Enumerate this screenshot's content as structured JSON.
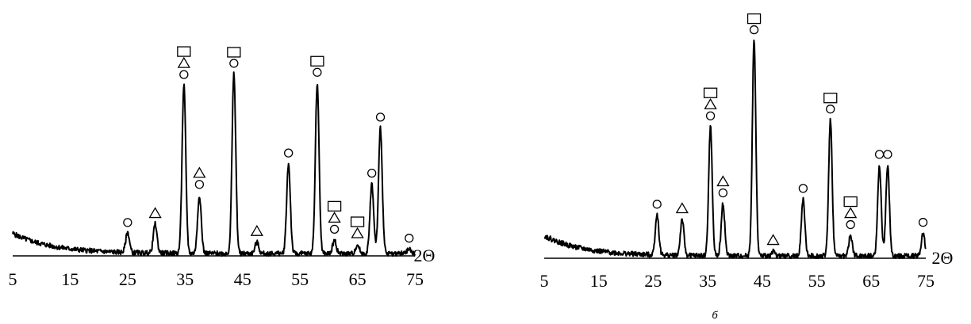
{
  "caption_b": "б",
  "chart_data": [
    {
      "type": "line",
      "xlabel": "2Θ",
      "ylabel": "",
      "xlim": [
        5,
        75
      ],
      "ylim": [
        0,
        100
      ],
      "x_ticks": [
        "5",
        "15",
        "25",
        "35",
        "45",
        "55",
        "65",
        "75"
      ],
      "legend": [
        "□",
        "△",
        "○"
      ],
      "markers_shown": [
        "square",
        "triangle",
        "circle"
      ],
      "peaks": [
        {
          "x": 25,
          "y": 11,
          "phases": [
            "circle"
          ]
        },
        {
          "x": 29.8,
          "y": 15,
          "phases": [
            "triangle"
          ]
        },
        {
          "x": 34.8,
          "y": 77,
          "phases": [
            "circle",
            "triangle",
            "square"
          ]
        },
        {
          "x": 37.5,
          "y": 28,
          "phases": [
            "circle",
            "triangle"
          ]
        },
        {
          "x": 43.5,
          "y": 82,
          "phases": [
            "circle",
            "square"
          ]
        },
        {
          "x": 47.5,
          "y": 7,
          "phases": [
            "triangle"
          ]
        },
        {
          "x": 53,
          "y": 42,
          "phases": [
            "circle"
          ]
        },
        {
          "x": 58,
          "y": 78,
          "phases": [
            "circle",
            "square"
          ]
        },
        {
          "x": 61,
          "y": 8,
          "phases": [
            "circle",
            "triangle",
            "square"
          ]
        },
        {
          "x": 65,
          "y": 6,
          "phases": [
            "triangle",
            "square"
          ]
        },
        {
          "x": 67.5,
          "y": 33,
          "phases": [
            "circle"
          ]
        },
        {
          "x": 69,
          "y": 58,
          "phases": [
            "circle"
          ]
        },
        {
          "x": 74,
          "y": 4,
          "phases": [
            "circle"
          ]
        }
      ],
      "background": {
        "start": 10,
        "min": 1
      }
    },
    {
      "type": "line",
      "xlabel": "2Θ",
      "ylabel": "",
      "xlim": [
        5,
        75
      ],
      "ylim": [
        0,
        100
      ],
      "x_ticks": [
        "5",
        "15",
        "25",
        "35",
        "45",
        "55",
        "65",
        "75"
      ],
      "markers_shown": [
        "square",
        "triangle",
        "circle"
      ],
      "peaks": [
        {
          "x": 25.7,
          "y": 20,
          "phases": [
            "circle"
          ]
        },
        {
          "x": 30.3,
          "y": 18,
          "phases": [
            "triangle"
          ]
        },
        {
          "x": 35.5,
          "y": 59,
          "phases": [
            "circle",
            "triangle",
            "square"
          ]
        },
        {
          "x": 37.8,
          "y": 25,
          "phases": [
            "circle",
            "triangle"
          ]
        },
        {
          "x": 43.5,
          "y": 97,
          "phases": [
            "circle",
            "square"
          ]
        },
        {
          "x": 47,
          "y": 4,
          "phases": [
            "triangle"
          ]
        },
        {
          "x": 52.5,
          "y": 27,
          "phases": [
            "circle"
          ]
        },
        {
          "x": 57.5,
          "y": 62,
          "phases": [
            "circle",
            "square"
          ]
        },
        {
          "x": 61.2,
          "y": 11,
          "phases": [
            "circle",
            "triangle",
            "square"
          ]
        },
        {
          "x": 66.5,
          "y": 42,
          "phases": [
            "circle"
          ]
        },
        {
          "x": 68,
          "y": 42,
          "phases": [
            "circle"
          ]
        },
        {
          "x": 74.5,
          "y": 12,
          "phases": [
            "circle"
          ]
        }
      ],
      "background": {
        "start": 10,
        "min": 1
      }
    }
  ]
}
